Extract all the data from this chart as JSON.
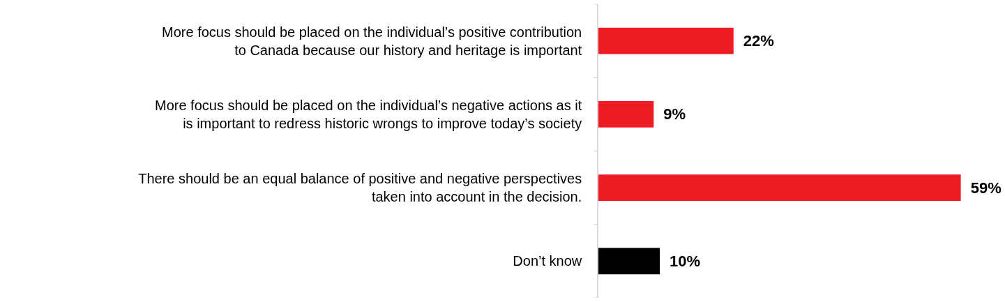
{
  "chart_data": {
    "type": "bar",
    "orientation": "horizontal",
    "categories": [
      "More focus should be placed on the individual’s positive contribution to Canada because our history and heritage is important",
      "More focus should be placed on the individual’s negative actions as it is important to redress historic wrongs to improve today’s society",
      "There should be an equal balance of positive and negative perspectives taken into account in the decision.",
      "Don’t know"
    ],
    "values": [
      22,
      9,
      59,
      10
    ],
    "colors": [
      "#ed1c24",
      "#ed1c24",
      "#ed1c24",
      "#000000"
    ],
    "value_labels": [
      "22%",
      "9%",
      "59%",
      "10%"
    ],
    "tick_labels": "y"
  }
}
